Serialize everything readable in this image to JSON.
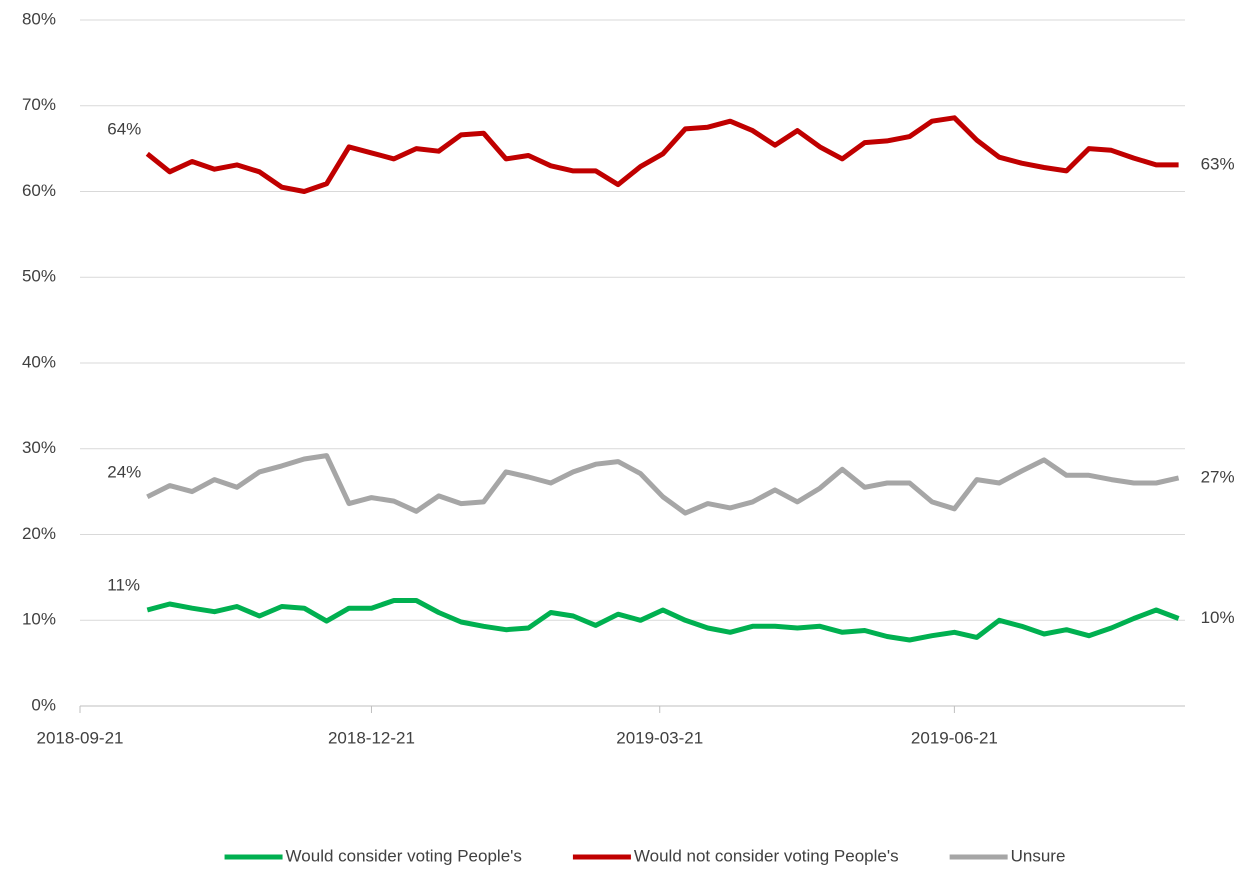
{
  "chart_data": {
    "type": "line",
    "x": [
      "2018-10-12",
      "2018-10-19",
      "2018-10-26",
      "2018-11-02",
      "2018-11-09",
      "2018-11-16",
      "2018-11-23",
      "2018-11-30",
      "2018-12-07",
      "2018-12-14",
      "2018-12-21",
      "2018-12-28",
      "2019-01-04",
      "2019-01-11",
      "2019-01-18",
      "2019-01-25",
      "2019-02-01",
      "2019-02-08",
      "2019-02-15",
      "2019-02-22",
      "2019-03-01",
      "2019-03-08",
      "2019-03-15",
      "2019-03-22",
      "2019-03-29",
      "2019-04-05",
      "2019-04-12",
      "2019-04-19",
      "2019-04-26",
      "2019-05-03",
      "2019-05-10",
      "2019-05-17",
      "2019-05-24",
      "2019-05-31",
      "2019-06-07",
      "2019-06-14",
      "2019-06-21",
      "2019-06-28",
      "2019-07-05",
      "2019-07-12",
      "2019-07-19",
      "2019-07-26",
      "2019-08-02",
      "2019-08-09",
      "2019-08-16",
      "2019-08-23",
      "2019-08-30"
    ],
    "series": [
      {
        "name": "Would consider voting People's",
        "color": "#00b050",
        "start_label": "11%",
        "end_label": "10%",
        "values": [
          11.2,
          11.9,
          11.4,
          11.0,
          11.6,
          10.5,
          11.6,
          11.4,
          9.9,
          11.4,
          11.4,
          12.3,
          12.3,
          10.9,
          9.8,
          9.3,
          8.9,
          9.1,
          10.9,
          10.5,
          9.4,
          10.7,
          10.0,
          11.2,
          10.0,
          9.1,
          8.6,
          9.3,
          9.3,
          9.1,
          9.3,
          8.6,
          8.8,
          8.1,
          7.7,
          8.2,
          8.6,
          8.0,
          10.0,
          9.3,
          8.4,
          8.9,
          8.2,
          9.1,
          10.2,
          11.2,
          10.2
        ]
      },
      {
        "name": "Would not consider voting People's",
        "color": "#c00000",
        "start_label": "64%",
        "end_label": "63%",
        "values": [
          64.4,
          62.3,
          63.5,
          62.6,
          63.1,
          62.3,
          60.5,
          60.0,
          60.9,
          65.2,
          64.5,
          63.8,
          65.0,
          64.7,
          66.6,
          66.8,
          63.8,
          64.2,
          63.0,
          62.4,
          62.4,
          60.8,
          62.9,
          64.4,
          67.3,
          67.5,
          68.2,
          67.1,
          65.4,
          67.1,
          65.2,
          63.8,
          65.7,
          65.9,
          66.4,
          68.2,
          68.6,
          66.0,
          64.0,
          63.3,
          62.8,
          62.4,
          65.0,
          64.8,
          63.9,
          63.1,
          63.1
        ]
      },
      {
        "name": "Unsure",
        "color": "#a6a6a6",
        "start_label": "24%",
        "end_label": "27%",
        "values": [
          24.4,
          25.7,
          25.0,
          26.4,
          25.5,
          27.3,
          28.0,
          28.8,
          29.2,
          23.6,
          24.3,
          23.9,
          22.7,
          24.5,
          23.6,
          23.8,
          27.3,
          26.7,
          26.0,
          27.3,
          28.2,
          28.5,
          27.1,
          24.4,
          22.5,
          23.6,
          23.1,
          23.8,
          25.2,
          23.8,
          25.4,
          27.6,
          25.5,
          26.0,
          26.0,
          23.8,
          23.0,
          26.4,
          26.0,
          27.4,
          28.7,
          26.9,
          26.9,
          26.4,
          26.0,
          26.0,
          26.6
        ]
      }
    ],
    "xlim": [
      "2018-09-21",
      "2019-09-01"
    ],
    "xticks": [
      "2018-09-21",
      "2018-12-21",
      "2019-03-21",
      "2019-06-21"
    ],
    "ylim": [
      0,
      80
    ],
    "yticks": [
      {
        "value": 0,
        "label": "0%"
      },
      {
        "value": 10,
        "label": "10%"
      },
      {
        "value": 20,
        "label": "20%"
      },
      {
        "value": 30,
        "label": "30%"
      },
      {
        "value": 40,
        "label": "40%"
      },
      {
        "value": 50,
        "label": "50%"
      },
      {
        "value": 60,
        "label": "60%"
      },
      {
        "value": 70,
        "label": "70%"
      },
      {
        "value": 80,
        "label": "80%"
      }
    ],
    "grid": true,
    "legend": "bottom"
  }
}
